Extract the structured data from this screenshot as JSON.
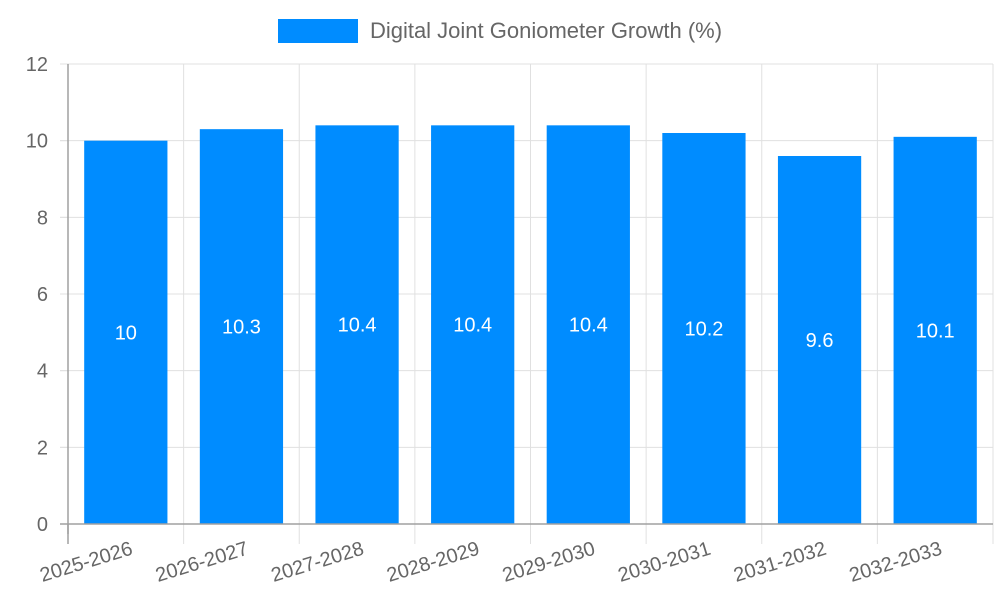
{
  "legend": {
    "label": "Digital Joint Goniometer Growth (%)",
    "color": "#008cff"
  },
  "chart_data": {
    "type": "bar",
    "title": "",
    "xlabel": "",
    "ylabel": "",
    "categories": [
      "2025-2026",
      "2026-2027",
      "2027-2028",
      "2028-2029",
      "2029-2030",
      "2030-2031",
      "2031-2032",
      "2032-2033"
    ],
    "series": [
      {
        "name": "Digital Joint Goniometer Growth (%)",
        "values": [
          10,
          10.3,
          10.4,
          10.4,
          10.4,
          10.2,
          9.6,
          10.1
        ],
        "color": "#008cff"
      }
    ],
    "ylim": [
      0,
      12
    ],
    "yticks": [
      0,
      2,
      4,
      6,
      8,
      10,
      12
    ],
    "grid": true,
    "legend_position": "top",
    "data_labels": [
      "10",
      "10.3",
      "10.4",
      "10.4",
      "10.4",
      "10.2",
      "9.6",
      "10.1"
    ]
  }
}
